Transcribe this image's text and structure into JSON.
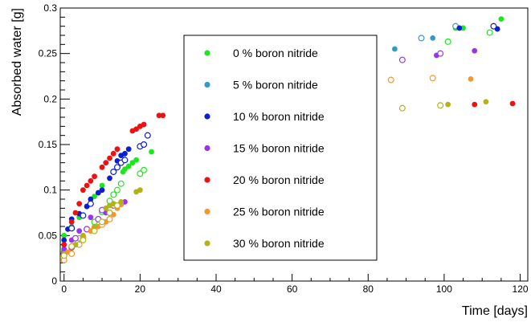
{
  "chart_data": {
    "type": "scatter",
    "xlabel": "Time [days]",
    "ylabel": "Absorbed water [g]",
    "xlim": [
      -1,
      122
    ],
    "ylim": [
      0,
      0.3
    ],
    "x_ticks": [
      0,
      20,
      40,
      60,
      80,
      100,
      120
    ],
    "x_tick_labels": [
      "0",
      "20",
      "40",
      "60",
      "80",
      "100",
      "120"
    ],
    "y_ticks": [
      0,
      0.05,
      0.1,
      0.15,
      0.2,
      0.25,
      0.3
    ],
    "y_tick_labels": [
      "0",
      "0.05",
      "0.1",
      "0.15",
      "0.2",
      "0.25",
      "0.3"
    ],
    "grid": false,
    "legend_position": "center",
    "series": [
      {
        "name": "0 % boron nitride",
        "color": "#1ee61e",
        "filled": [
          [
            0,
            0.05
          ],
          [
            2,
            0.06
          ],
          [
            4,
            0.07
          ],
          [
            6,
            0.082
          ],
          [
            8,
            0.093
          ],
          [
            10,
            0.105
          ],
          [
            15.5,
            0.12
          ],
          [
            16,
            0.123
          ],
          [
            17,
            0.126
          ],
          [
            18,
            0.13
          ],
          [
            19,
            0.133
          ],
          [
            23,
            0.142
          ],
          [
            103,
            0.278
          ],
          [
            105,
            0.278
          ],
          [
            115,
            0.288
          ]
        ],
        "open": [
          [
            0,
            0.032
          ],
          [
            2,
            0.037
          ],
          [
            4,
            0.047
          ],
          [
            6,
            0.057
          ],
          [
            8,
            0.065
          ],
          [
            10,
            0.076
          ],
          [
            12,
            0.088
          ],
          [
            13,
            0.095
          ],
          [
            14,
            0.1
          ],
          [
            15,
            0.107
          ],
          [
            20,
            0.118
          ],
          [
            21,
            0.122
          ],
          [
            101,
            0.263
          ],
          [
            112,
            0.273
          ]
        ]
      },
      {
        "name": "5 % boron nitride",
        "color": "#3399cc",
        "filled": [
          [
            87,
            0.255
          ],
          [
            97,
            0.267
          ]
        ],
        "open": [
          [
            94,
            0.267
          ],
          [
            103,
            0.28
          ]
        ]
      },
      {
        "name": "10 % boron nitride",
        "color": "#0a1ed2",
        "filled": [
          [
            0,
            0.045
          ],
          [
            1,
            0.057
          ],
          [
            2,
            0.068
          ],
          [
            4,
            0.074
          ],
          [
            6,
            0.082
          ],
          [
            7,
            0.09
          ],
          [
            9,
            0.097
          ],
          [
            10,
            0.1
          ],
          [
            12,
            0.113
          ],
          [
            14,
            0.132
          ],
          [
            15,
            0.138
          ],
          [
            16,
            0.14
          ],
          [
            17,
            0.145
          ],
          [
            104,
            0.278
          ],
          [
            114,
            0.277
          ]
        ],
        "open": [
          [
            2,
            0.058
          ],
          [
            5,
            0.072
          ],
          [
            7,
            0.085
          ],
          [
            13,
            0.12
          ],
          [
            14,
            0.125
          ],
          [
            15,
            0.13
          ],
          [
            16,
            0.133
          ],
          [
            20,
            0.148
          ],
          [
            21,
            0.15
          ],
          [
            22,
            0.16
          ],
          [
            113,
            0.28
          ]
        ]
      },
      {
        "name": "15 % boron nitride",
        "color": "#9933ee",
        "filled": [
          [
            0,
            0.035
          ],
          [
            2,
            0.045
          ],
          [
            4,
            0.055
          ],
          [
            7,
            0.07
          ],
          [
            11,
            0.075
          ],
          [
            16,
            0.087
          ],
          [
            98,
            0.248
          ],
          [
            108,
            0.253
          ]
        ],
        "open": [
          [
            0,
            0.03
          ],
          [
            2,
            0.037
          ],
          [
            3,
            0.047
          ],
          [
            6,
            0.057
          ],
          [
            9,
            0.068
          ],
          [
            10,
            0.078
          ],
          [
            13,
            0.083
          ],
          [
            89,
            0.243
          ],
          [
            99,
            0.25
          ]
        ]
      },
      {
        "name": "20 % boron nitride",
        "color": "#ee1111",
        "filled": [
          [
            0,
            0.04
          ],
          [
            2,
            0.065
          ],
          [
            3,
            0.075
          ],
          [
            4,
            0.085
          ],
          [
            5,
            0.1
          ],
          [
            6,
            0.105
          ],
          [
            7,
            0.11
          ],
          [
            8,
            0.115
          ],
          [
            10,
            0.125
          ],
          [
            11,
            0.13
          ],
          [
            12,
            0.135
          ],
          [
            13,
            0.14
          ],
          [
            14,
            0.145
          ],
          [
            18,
            0.165
          ],
          [
            19,
            0.167
          ],
          [
            20,
            0.17
          ],
          [
            21,
            0.172
          ],
          [
            25,
            0.182
          ],
          [
            26,
            0.182
          ],
          [
            108,
            0.194
          ],
          [
            118,
            0.195
          ]
        ],
        "open": []
      },
      {
        "name": "25 % boron nitride",
        "color": "#f5962d",
        "filled": [
          [
            0,
            0.025
          ],
          [
            1,
            0.032
          ],
          [
            3,
            0.04
          ],
          [
            5,
            0.048
          ],
          [
            7,
            0.055
          ],
          [
            8,
            0.058
          ],
          [
            9,
            0.06
          ],
          [
            10,
            0.062
          ],
          [
            11,
            0.065
          ],
          [
            13,
            0.073
          ],
          [
            14,
            0.08
          ],
          [
            15,
            0.084
          ],
          [
            107,
            0.222
          ]
        ],
        "open": [
          [
            0,
            0.023
          ],
          [
            2,
            0.03
          ],
          [
            4,
            0.04
          ],
          [
            5,
            0.048
          ],
          [
            8,
            0.058
          ],
          [
            10,
            0.062
          ],
          [
            12,
            0.068
          ],
          [
            86,
            0.221
          ],
          [
            97,
            0.223
          ]
        ]
      },
      {
        "name": "30 % boron nitride",
        "color": "#b2b21a",
        "filled": [
          [
            0,
            0.03
          ],
          [
            3,
            0.04
          ],
          [
            5,
            0.05
          ],
          [
            8,
            0.06
          ],
          [
            11,
            0.08
          ],
          [
            12,
            0.083
          ],
          [
            13,
            0.085
          ],
          [
            15,
            0.087
          ],
          [
            19,
            0.098
          ],
          [
            20,
            0.1
          ],
          [
            101,
            0.194
          ],
          [
            111,
            0.197
          ]
        ],
        "open": [
          [
            0,
            0.028
          ],
          [
            2,
            0.038
          ],
          [
            5,
            0.045
          ],
          [
            8,
            0.055
          ],
          [
            10,
            0.065
          ],
          [
            12,
            0.075
          ],
          [
            14,
            0.083
          ],
          [
            89,
            0.19
          ],
          [
            99,
            0.193
          ]
        ]
      }
    ]
  }
}
